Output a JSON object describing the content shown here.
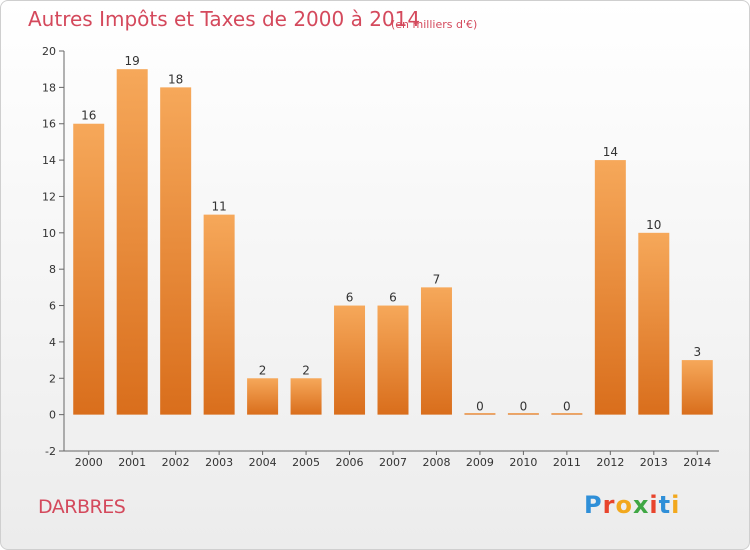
{
  "title": "Autres Impôts et Taxes de 2000 à 2014",
  "subtitle": "(en milliers d'€)",
  "commune": "DARBRES",
  "logo": {
    "text": "Proxiti",
    "colors": [
      "#2f8fd8",
      "#e8442c",
      "#f2a81d",
      "#3fa744",
      "#e8442c",
      "#2f8fd8",
      "#f2a81d"
    ]
  },
  "colors": {
    "bar_light": "#f6a85a",
    "bar_dark": "#d96e1c",
    "title": "#d4495c"
  },
  "chart_data": {
    "type": "bar",
    "categories": [
      "2000",
      "2001",
      "2002",
      "2003",
      "2004",
      "2005",
      "2006",
      "2007",
      "2008",
      "2009",
      "2010",
      "2011",
      "2012",
      "2013",
      "2014"
    ],
    "values": [
      16,
      19,
      18,
      11,
      2,
      2,
      6,
      6,
      7,
      0,
      0,
      0,
      14,
      10,
      3
    ],
    "ylim": [
      -2,
      20
    ],
    "yticks": [
      -2,
      0,
      2,
      4,
      6,
      8,
      10,
      12,
      14,
      16,
      18,
      20
    ],
    "grid": false,
    "legend": "none"
  }
}
